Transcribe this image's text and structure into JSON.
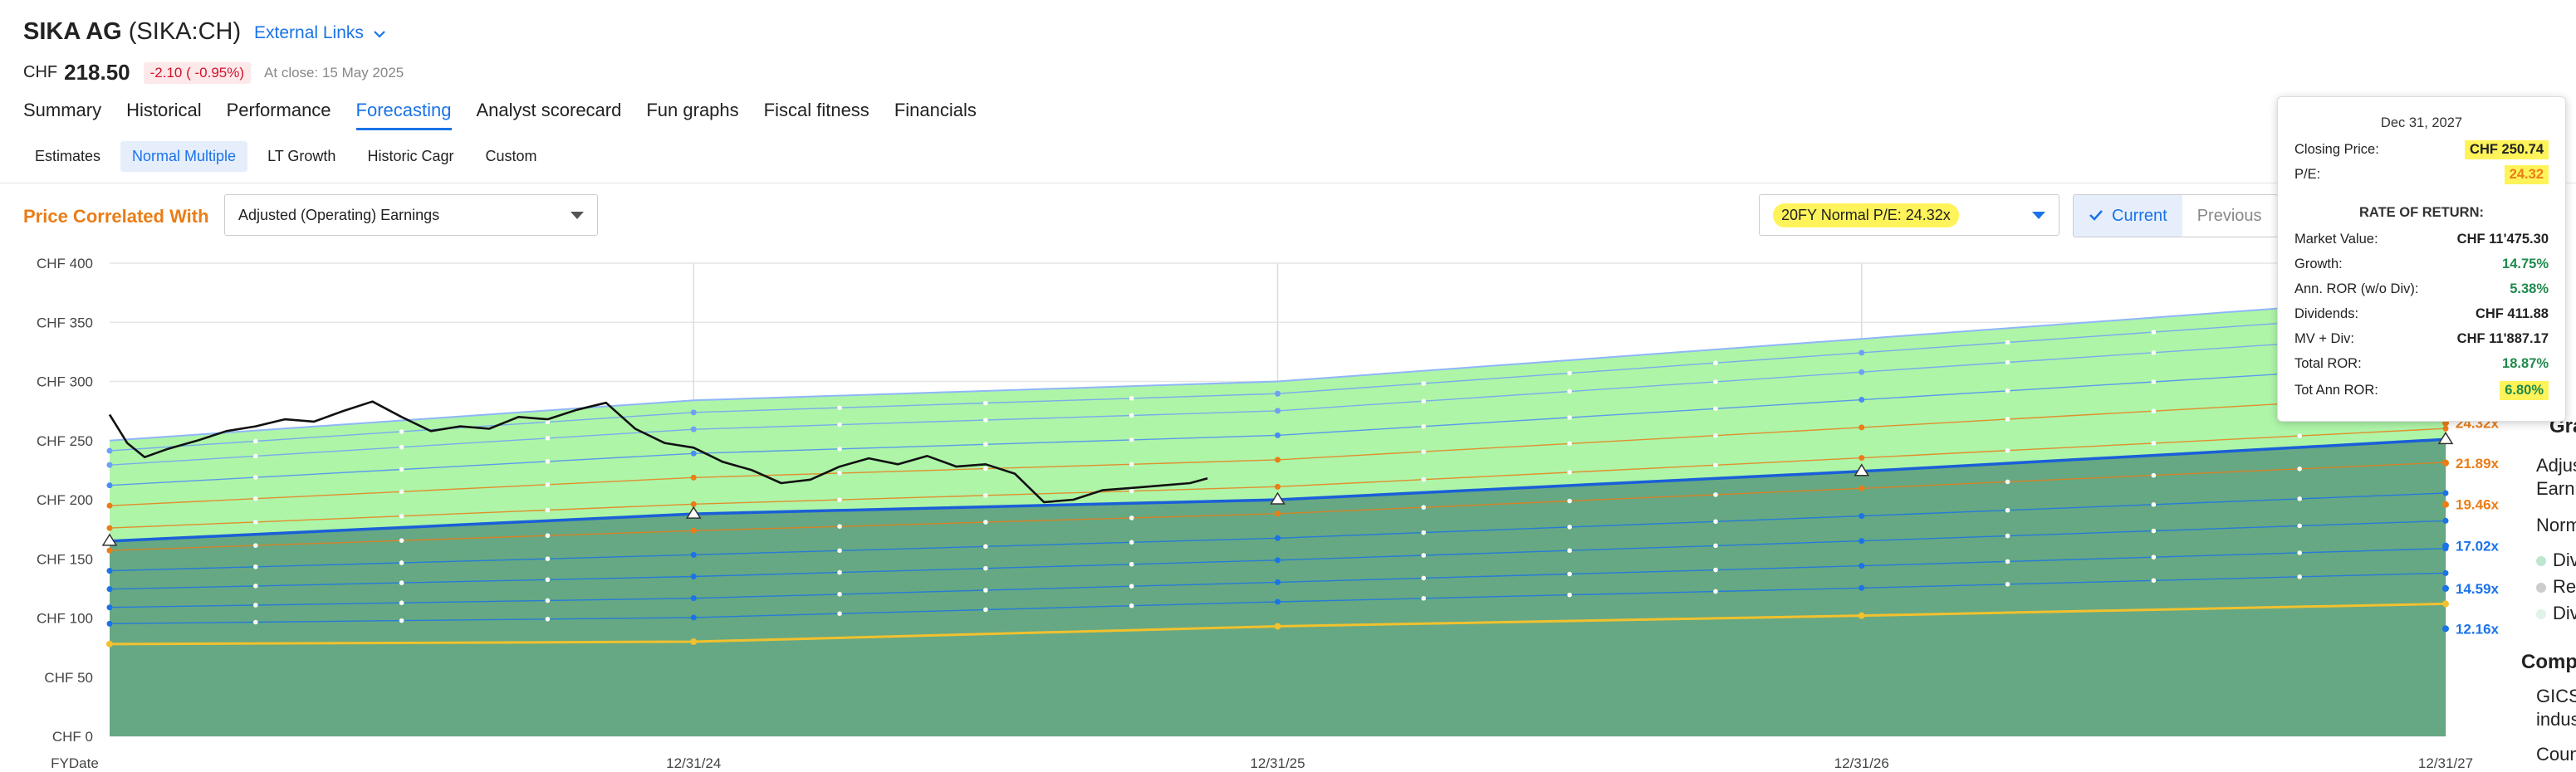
{
  "header": {
    "company": "SIKA AG",
    "ticker": "(SIKA:CH)",
    "external_links": "External Links",
    "currency": "CHF",
    "price": "218.50",
    "change": "-2.10 ( -0.95%)",
    "at_close": "At close: 15 May 2025"
  },
  "tabs": [
    "Summary",
    "Historical",
    "Performance",
    "Forecasting",
    "Analyst scorecard",
    "Fun graphs",
    "Fiscal fitness",
    "Financials"
  ],
  "subtabs": [
    "Estimates",
    "Normal Multiple",
    "LT Growth",
    "Historic Cagr",
    "Custom"
  ],
  "controls": {
    "price_correlated_label": "Price Correlated With",
    "earnings_select": "Adjusted (Operating) Earnings",
    "pe_select": "20FY Normal P/E: 24.32x",
    "current": "Current",
    "previous": "Previous"
  },
  "tooltip": {
    "date": "Dec 31, 2027",
    "closing_price_label": "Closing Price:",
    "closing_price": "CHF 250.74",
    "pe_label": "P/E:",
    "pe": "24.32",
    "ror_heading": "RATE OF RETURN:",
    "market_value_label": "Market Value:",
    "market_value": "CHF 11'475.30",
    "growth_label": "Growth:",
    "growth": "14.75%",
    "ann_ror_label": "Ann. ROR (w/o Div):",
    "ann_ror": "5.38%",
    "dividends_label": "Dividends:",
    "dividends": "CHF 411.88",
    "mv_div_label": "MV + Div:",
    "mv_div": "CHF 11'887.17",
    "total_ror_label": "Total ROR:",
    "total_ror": "18.87%",
    "tot_ann_ror_label": "Tot Ann ROR:",
    "tot_ann_ror": "6.80%"
  },
  "side_panel": {
    "graph_heading": "Graph",
    "adjus": "Adjus",
    "earni": "Earni",
    "norm": "Norm",
    "div": "Div",
    "re": "Re",
    "div2": "Div",
    "comp_heading": "Comp",
    "gics": "GICS",
    "indus": "indus",
    "count": "Count"
  },
  "chart_data": {
    "type": "line",
    "y_tick_labels": [
      "CHF 400",
      "CHF 350",
      "CHF 300",
      "CHF 250",
      "CHF 200",
      "CHF 150",
      "CHF 100",
      "CHF 50",
      "CHF 0"
    ],
    "y_ticks": [
      400,
      350,
      300,
      250,
      200,
      150,
      100,
      50,
      0
    ],
    "ylim": [
      0,
      400
    ],
    "x_labels": [
      "FYDate",
      "12/31/24",
      "12/31/25",
      "12/31/26",
      "12/31/27"
    ],
    "x_years": [
      2024,
      2025,
      2026,
      2027
    ],
    "xlim": [
      2023.0,
      2027.0
    ],
    "multiples": [
      {
        "label": "24.32x",
        "color": "#ea7d17"
      },
      {
        "label": "21.89x",
        "color": "#ea7d17"
      },
      {
        "label": "19.46x",
        "color": "#ea7d17"
      },
      {
        "label": "17.02x",
        "color": "#1a73e8"
      },
      {
        "label": "14.59x",
        "color": "#1a73e8"
      },
      {
        "label": "12.16x",
        "color": "#1a73e8"
      }
    ],
    "earnings_line": {
      "x": [
        2023.0,
        2024.0,
        2025.0,
        2026.0,
        2027.0
      ],
      "y": [
        78,
        80,
        93,
        102,
        112
      ]
    },
    "normal_pe_line": {
      "x": [
        2023.0,
        2024.0,
        2025.0,
        2026.0,
        2027.0
      ],
      "y": [
        165,
        188,
        200,
        224,
        251
      ]
    },
    "upper_band": {
      "x": [
        2023.0,
        2024.0,
        2025.0,
        2026.0,
        2027.0
      ],
      "y": [
        250,
        284,
        300,
        336,
        372
      ]
    },
    "price_line": {
      "x": [
        2023.0,
        2023.03,
        2023.06,
        2023.1,
        2023.15,
        2023.2,
        2023.25,
        2023.3,
        2023.35,
        2023.4,
        2023.45,
        2023.5,
        2023.55,
        2023.6,
        2023.65,
        2023.7,
        2023.75,
        2023.8,
        2023.85,
        2023.9,
        2023.95,
        2024.0,
        2024.05,
        2024.1,
        2024.15,
        2024.2,
        2024.25,
        2024.3,
        2024.35,
        2024.4,
        2024.45,
        2024.5,
        2024.55,
        2024.6,
        2024.65,
        2024.7,
        2024.75,
        2024.8,
        2024.85,
        2024.88
      ],
      "y": [
        272,
        248,
        236,
        243,
        250,
        258,
        262,
        268,
        266,
        275,
        283,
        270,
        258,
        262,
        260,
        270,
        268,
        276,
        282,
        260,
        248,
        244,
        232,
        225,
        214,
        217,
        228,
        235,
        230,
        237,
        228,
        230,
        222,
        198,
        200,
        208,
        210,
        212,
        214,
        218
      ]
    },
    "grid": true,
    "legend": "right"
  }
}
